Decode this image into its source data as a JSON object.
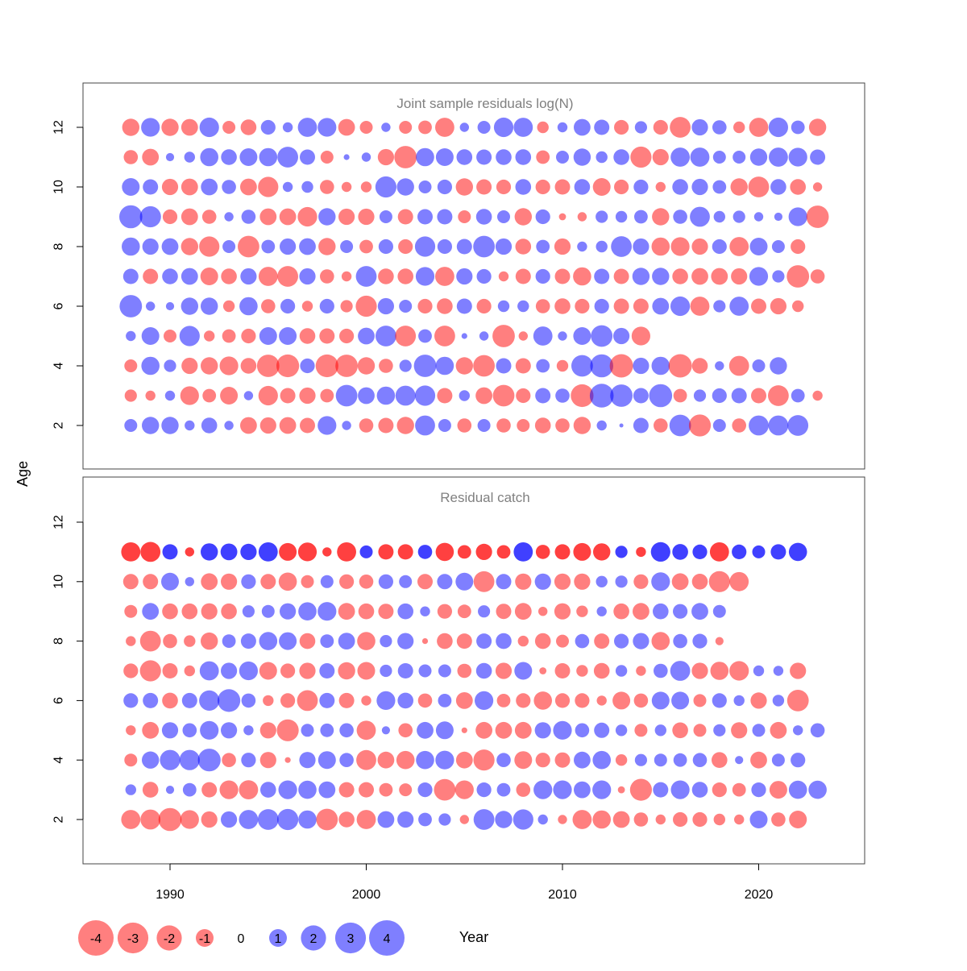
{
  "chart_data": {
    "type": "scatter",
    "subtype": "bubble",
    "xlabel": "Year",
    "ylabel": "Age",
    "x_ticks": [
      "1990",
      "2000",
      "2010",
      "2020"
    ],
    "xlim": [
      1985.5,
      2025.5
    ],
    "colors": {
      "negative": "#ff0000",
      "positive": "#0000ff",
      "negative_alpha": 0.5,
      "positive_alpha": 0.5
    },
    "legend": {
      "position": "bottom",
      "items": [
        {
          "label": "-4",
          "value": -4
        },
        {
          "label": "-3",
          "value": -3
        },
        {
          "label": "-2",
          "value": -2
        },
        {
          "label": "-1",
          "value": -1
        },
        {
          "label": "0",
          "value": 0
        },
        {
          "label": "1",
          "value": 1
        },
        {
          "label": "2",
          "value": 2
        },
        {
          "label": "3",
          "value": 3
        },
        {
          "label": "4",
          "value": 4
        }
      ]
    },
    "years": [
      1988,
      1989,
      1990,
      1991,
      1992,
      1993,
      1994,
      1995,
      1996,
      1997,
      1998,
      1999,
      2000,
      2001,
      2002,
      2003,
      2004,
      2005,
      2006,
      2007,
      2008,
      2009,
      2010,
      2011,
      2012,
      2013,
      2014,
      2015,
      2016,
      2017,
      2018,
      2019,
      2020,
      2021,
      2022,
      2023
    ],
    "panels": [
      {
        "title": "Joint sample residuals log(N)",
        "ylim": [
          0.6,
          13.5
        ],
        "y_ticks": [
          "2",
          "4",
          "6",
          "8",
          "10",
          "12"
        ],
        "opaque": false,
        "ages": [
          2,
          3,
          4,
          5,
          6,
          7,
          8,
          9,
          10,
          11,
          12
        ],
        "residuals": [
          [
            1.0,
            1.8,
            1.8,
            0.6,
            1.5,
            0.5,
            -1.7,
            -1.6,
            -1.7,
            -1.4,
            2.1,
            0.5,
            -1.2,
            -1.4,
            -1.8,
            2.4,
            1.0,
            -1.2,
            1.0,
            -1.2,
            -1.0,
            -1.5,
            -1.2,
            -1.8,
            0.6,
            0.1,
            1.4,
            -1.2,
            2.8,
            -2.9,
            1.0,
            -1.2,
            2.4,
            2.4,
            2.6
          ],
          [
            -0.9,
            -0.6,
            0.6,
            -2.1,
            -1.1,
            -1.9,
            0.5,
            -2.3,
            -1.4,
            -1.6,
            -1.1,
            2.8,
            1.7,
            2.0,
            2.4,
            2.5,
            -1.4,
            0.7,
            -1.7,
            -2.8,
            -1.3,
            1.4,
            1.2,
            -3.1,
            3.4,
            3.0,
            1.4,
            3.2,
            -1.1,
            0.9,
            1.3,
            1.4,
            -1.4,
            -2.6,
            1.1,
            -0.6
          ],
          [
            -1.0,
            2.0,
            0.9,
            -1.6,
            -1.8,
            -2.1,
            -1.5,
            -3.0,
            -3.1,
            1.3,
            -3.1,
            -3.0,
            -1.8,
            -1.2,
            0.9,
            3.0,
            2.0,
            -1.8,
            -2.8,
            1.4,
            -1.4,
            1.1,
            -0.8,
            2.8,
            3.2,
            -3.3,
            1.6,
            2.0,
            -3.3,
            -1.5,
            0.5,
            -2.4,
            1.0,
            1.8
          ],
          [
            0.6,
            1.9,
            -1.0,
            2.5,
            -0.7,
            -1.1,
            -1.3,
            1.9,
            1.9,
            -1.5,
            -1.4,
            -1.3,
            1.7,
            2.6,
            -2.6,
            1.1,
            -2.6,
            0.2,
            0.5,
            -3.0,
            -0.5,
            2.2,
            0.5,
            1.9,
            2.8,
            1.6,
            -2.1
          ],
          [
            3.0,
            0.5,
            0.4,
            1.8,
            1.8,
            -0.8,
            2.0,
            -1.2,
            1.3,
            -0.7,
            1.3,
            -0.9,
            -2.7,
            1.6,
            1.0,
            -1.3,
            -1.5,
            1.4,
            -1.3,
            0.8,
            0.8,
            -1.2,
            -1.5,
            -1.3,
            1.3,
            -1.4,
            -1.4,
            1.7,
            2.3,
            -2.2,
            0.9,
            2.2,
            -1.4,
            -1.6,
            -0.8
          ],
          [
            1.4,
            -1.4,
            1.5,
            1.7,
            -1.9,
            -1.5,
            1.6,
            -2.2,
            -2.6,
            1.6,
            -1.2,
            -0.6,
            2.6,
            -1.5,
            -1.5,
            2.1,
            -2.2,
            1.6,
            1.3,
            -0.6,
            -1.4,
            1.3,
            -1.4,
            -2.0,
            1.4,
            -1.4,
            1.8,
            1.8,
            -1.5,
            -1.7,
            -1.7,
            -1.6,
            2.1,
            0.9,
            -3.0,
            -1.2
          ],
          [
            2.0,
            1.6,
            1.7,
            -1.8,
            -2.5,
            1.0,
            -2.8,
            1.1,
            1.6,
            1.7,
            -1.8,
            1.0,
            -1.1,
            1.3,
            -1.3,
            2.5,
            1.3,
            1.4,
            2.8,
            1.6,
            -1.5,
            1.1,
            -1.6,
            0.6,
            0.8,
            2.6,
            1.6,
            -2.0,
            -2.1,
            -1.6,
            1.3,
            -2.2,
            1.9,
            1.0,
            -1.3
          ],
          [
            3.2,
            2.7,
            -1.3,
            -1.7,
            -1.2,
            0.5,
            1.2,
            -1.7,
            -1.7,
            -2.3,
            1.8,
            -1.6,
            -1.6,
            1.0,
            -1.4,
            1.4,
            1.4,
            -1.0,
            1.5,
            1.0,
            -1.8,
            1.3,
            -0.3,
            -0.5,
            0.9,
            0.8,
            1.1,
            -1.8,
            1.2,
            2.4,
            0.8,
            0.9,
            0.5,
            0.4,
            2.1,
            -3.0
          ],
          [
            1.9,
            1.4,
            -1.6,
            -1.7,
            1.7,
            1.2,
            -1.7,
            -2.5,
            0.6,
            0.8,
            -1.2,
            -0.6,
            -0.7,
            2.7,
            1.8,
            1.0,
            1.3,
            -1.8,
            -1.4,
            -1.3,
            1.5,
            -1.3,
            -1.4,
            1.5,
            -1.9,
            -1.3,
            1.3,
            -0.6,
            1.5,
            1.6,
            1.1,
            -1.8,
            -2.6,
            1.5,
            -1.5,
            -0.5
          ],
          [
            -1.2,
            -1.7,
            0.4,
            0.7,
            2.0,
            1.5,
            1.9,
            2.0,
            2.6,
            1.4,
            -1.0,
            0.2,
            0.5,
            -1.6,
            -3.0,
            2.0,
            1.9,
            1.5,
            1.4,
            1.5,
            1.5,
            -1.1,
            1.0,
            1.8,
            0.8,
            1.5,
            -2.7,
            -1.6,
            2.2,
            2.2,
            1.0,
            1.0,
            1.8,
            2.2,
            2.1,
            1.4
          ],
          [
            -1.8,
            2.1,
            -1.8,
            -1.7,
            2.3,
            -1.0,
            -1.5,
            1.3,
            0.6,
            2.2,
            2.1,
            -1.7,
            -1.0,
            0.5,
            -1.0,
            -1.1,
            -2.2,
            0.5,
            1.0,
            2.3,
            2.2,
            -0.8,
            0.6,
            1.7,
            1.4,
            -1.3,
            0.9,
            -1.3,
            -2.6,
            1.6,
            1.2,
            -0.8,
            -2.2,
            2.3,
            1.1,
            -1.8
          ]
        ]
      },
      {
        "title": "Residual catch",
        "ylim": [
          0.6,
          13.5
        ],
        "y_ticks": [
          "2",
          "4",
          "6",
          "8",
          "10",
          "12"
        ],
        "opaque_top_row": true,
        "ages": [
          2,
          3,
          4,
          5,
          6,
          7,
          8,
          9,
          10,
          11
        ],
        "residuals": [
          [
            -2.2,
            -2.4,
            -3.2,
            -2.1,
            -1.6,
            1.6,
            2.2,
            2.6,
            2.7,
            2.0,
            -2.8,
            -1.5,
            -2.2,
            1.7,
            1.6,
            1.1,
            0.9,
            -0.5,
            2.6,
            1.8,
            2.5,
            0.6,
            -0.5,
            -2.2,
            -2.0,
            -1.7,
            -1.2,
            -0.6,
            -1.3,
            -1.3,
            -0.8,
            -0.6,
            1.9,
            -1.2,
            -1.9
          ],
          [
            0.7,
            -1.5,
            0.4,
            1.1,
            -1.4,
            -2.1,
            -2.2,
            1.5,
            2.1,
            2.0,
            1.7,
            -1.4,
            -1.4,
            -1.1,
            -1.0,
            1.3,
            -2.8,
            -2.1,
            1.3,
            1.1,
            -1.2,
            2.1,
            2.1,
            1.7,
            2.1,
            -0.3,
            -2.9,
            1.4,
            2.1,
            1.5,
            -1.3,
            -1.1,
            1.3,
            -1.9,
            2.0,
            2.0
          ],
          [
            -1.0,
            1.8,
            2.5,
            2.5,
            3.1,
            -1.2,
            1.3,
            -1.6,
            -0.2,
            1.6,
            1.9,
            1.2,
            -2.4,
            -1.7,
            -2.0,
            2.0,
            2.1,
            -1.7,
            -2.7,
            1.2,
            -1.9,
            -1.3,
            -1.4,
            1.7,
            2.0,
            -0.8,
            0.9,
            1.0,
            1.1,
            1.2,
            -1.5,
            0.4,
            -1.7,
            1.0,
            1.3
          ],
          [
            -0.6,
            -1.7,
            1.6,
            1.2,
            2.1,
            1.6,
            0.6,
            -1.6,
            -2.9,
            1.0,
            1.1,
            1.2,
            -2.2,
            0.4,
            -1.2,
            1.7,
            1.9,
            -0.2,
            -1.7,
            -1.7,
            -1.7,
            1.6,
            2.1,
            1.2,
            1.4,
            0.8,
            -1.0,
            0.8,
            -1.5,
            -1.0,
            0.9,
            -1.6,
            1.0,
            -1.7,
            0.6,
            1.2
          ],
          [
            1.3,
            1.4,
            -1.5,
            1.4,
            2.5,
            3.1,
            1.2,
            -0.7,
            -1.3,
            -2.6,
            1.4,
            -1.4,
            -0.6,
            2.1,
            1.5,
            -1.2,
            1.1,
            -1.7,
            2.1,
            -1.1,
            -1.3,
            -2.0,
            -1.3,
            -1.3,
            -0.6,
            -1.9,
            -1.2,
            1.9,
            1.9,
            -1.0,
            1.3,
            0.7,
            -1.6,
            0.8,
            -2.8
          ],
          [
            -1.3,
            -2.7,
            -1.4,
            -0.7,
            2.2,
            1.6,
            2.1,
            -1.9,
            -1.3,
            -1.6,
            1.4,
            -1.8,
            -1.9,
            0.9,
            1.4,
            1.0,
            1.0,
            -1.2,
            1.5,
            -1.6,
            1.9,
            -0.3,
            -1.4,
            -0.8,
            -1.5,
            0.8,
            -0.6,
            1.2,
            2.4,
            -1.6,
            -2.0,
            -2.3,
            0.7,
            0.6,
            -1.6
          ],
          [
            -0.6,
            -2.6,
            -1.2,
            -0.8,
            -1.8,
            1.1,
            1.4,
            2.0,
            1.9,
            -1.5,
            1.1,
            1.7,
            -2.0,
            0.9,
            1.6,
            -0.2,
            -1.5,
            -1.4,
            1.4,
            1.5,
            -0.7,
            -1.5,
            -1.0,
            1.2,
            -1.4,
            1.3,
            1.6,
            -2.0,
            1.2,
            1.3,
            -0.4
          ],
          [
            -1.0,
            1.7,
            -1.5,
            -1.5,
            -1.6,
            -1.5,
            0.9,
            1.0,
            1.6,
            2.0,
            2.1,
            -1.7,
            -1.5,
            -1.4,
            1.5,
            0.6,
            -1.3,
            -1.1,
            0.9,
            -1.4,
            -1.7,
            -0.5,
            -1.6,
            -0.8,
            0.6,
            -1.5,
            -1.7,
            1.5,
            1.3,
            1.7,
            1.0
          ],
          [
            -1.4,
            -1.4,
            1.9,
            0.5,
            -1.7,
            -1.6,
            1.3,
            -1.4,
            -2.0,
            -1.0,
            1.0,
            -1.3,
            -1.2,
            1.3,
            1.0,
            -1.4,
            1.4,
            1.9,
            -2.6,
            1.4,
            -1.6,
            1.6,
            -1.6,
            -1.6,
            0.8,
            0.9,
            -1.3,
            2.1,
            -1.7,
            -1.5,
            -2.7,
            -2.2
          ],
          [
            -2.2,
            -2.4,
            1.4,
            -0.5,
            1.8,
            1.7,
            1.6,
            2.2,
            -1.9,
            -2.1,
            -0.5,
            -2.2,
            1.0,
            -1.4,
            -1.4,
            1.2,
            -2.0,
            -1.1,
            -1.6,
            -1.1,
            2.2,
            -1.2,
            -1.4,
            -1.9,
            -1.8,
            0.9,
            -0.6,
            2.3,
            1.5,
            1.3,
            -2.2,
            1.3,
            1.0,
            1.4,
            2.0
          ]
        ]
      }
    ]
  }
}
